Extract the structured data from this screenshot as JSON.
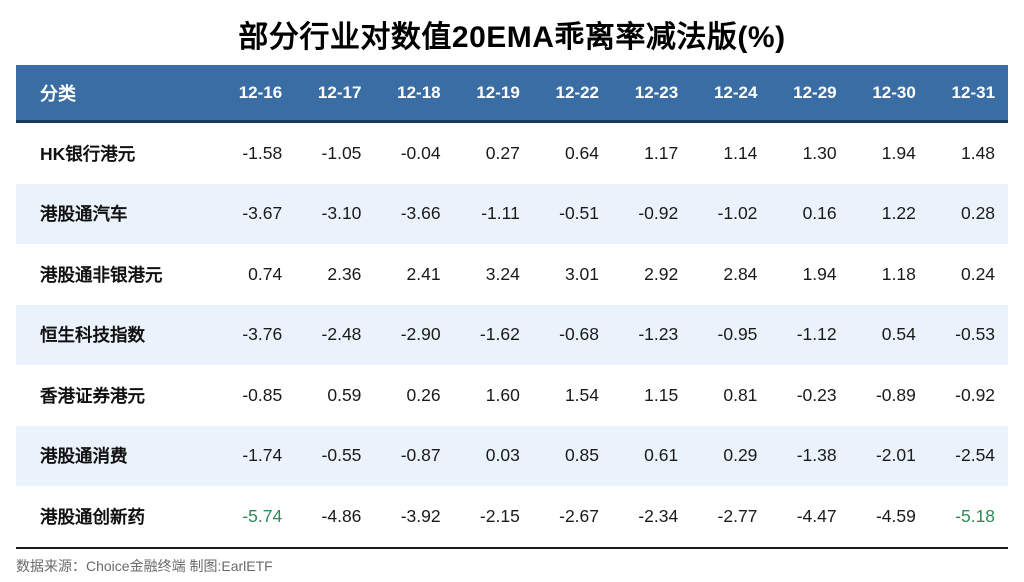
{
  "chart_data": {
    "type": "table",
    "title": "部分行业对数值20EMA乖离率减法版(%)",
    "columns": [
      "分类",
      "12-16",
      "12-17",
      "12-18",
      "12-19",
      "12-22",
      "12-23",
      "12-24",
      "12-29",
      "12-30",
      "12-31"
    ],
    "rows": [
      {
        "label": "HK银行港元",
        "values": [
          -1.58,
          -1.05,
          -0.04,
          0.27,
          0.64,
          1.17,
          1.14,
          1.3,
          1.94,
          1.48
        ]
      },
      {
        "label": "港股通汽车",
        "values": [
          -3.67,
          -3.1,
          -3.66,
          -1.11,
          -0.51,
          -0.92,
          -1.02,
          0.16,
          1.22,
          0.28
        ]
      },
      {
        "label": "港股通非银港元",
        "values": [
          0.74,
          2.36,
          2.41,
          3.24,
          3.01,
          2.92,
          2.84,
          1.94,
          1.18,
          0.24
        ]
      },
      {
        "label": "恒生科技指数",
        "values": [
          -3.76,
          -2.48,
          -2.9,
          -1.62,
          -0.68,
          -1.23,
          -0.95,
          -1.12,
          0.54,
          -0.53
        ]
      },
      {
        "label": "香港证券港元",
        "values": [
          -0.85,
          0.59,
          0.26,
          1.6,
          1.54,
          1.15,
          0.81,
          -0.23,
          -0.89,
          -0.92
        ]
      },
      {
        "label": "港股通消费",
        "values": [
          -1.74,
          -0.55,
          -0.87,
          0.03,
          0.85,
          0.61,
          0.29,
          -1.38,
          -2.01,
          -2.54
        ]
      },
      {
        "label": "港股通创新药",
        "values": [
          -5.74,
          -4.86,
          -3.92,
          -2.15,
          -2.67,
          -2.34,
          -2.77,
          -4.47,
          -4.59,
          -5.18
        ]
      }
    ],
    "green_cells": [
      [
        6,
        0
      ],
      [
        6,
        9
      ]
    ],
    "value_format": "2-decimals",
    "grid": "row-banding",
    "legend_position": "none"
  },
  "footer": {
    "text": "数据来源：Choice金融终端 制图:EarlETF"
  },
  "colors": {
    "title_text": "#000000",
    "header_bg": "#3A6DA4",
    "header_text": "#FFFFFF",
    "header_rule": "#1B3A5F",
    "row_stripe": "#EAF2FB",
    "body_text": "#1A1A1A",
    "green": "#2E8B57",
    "bottom_rule": "#1A1A1A",
    "footer_text": "#6A6A6A"
  }
}
